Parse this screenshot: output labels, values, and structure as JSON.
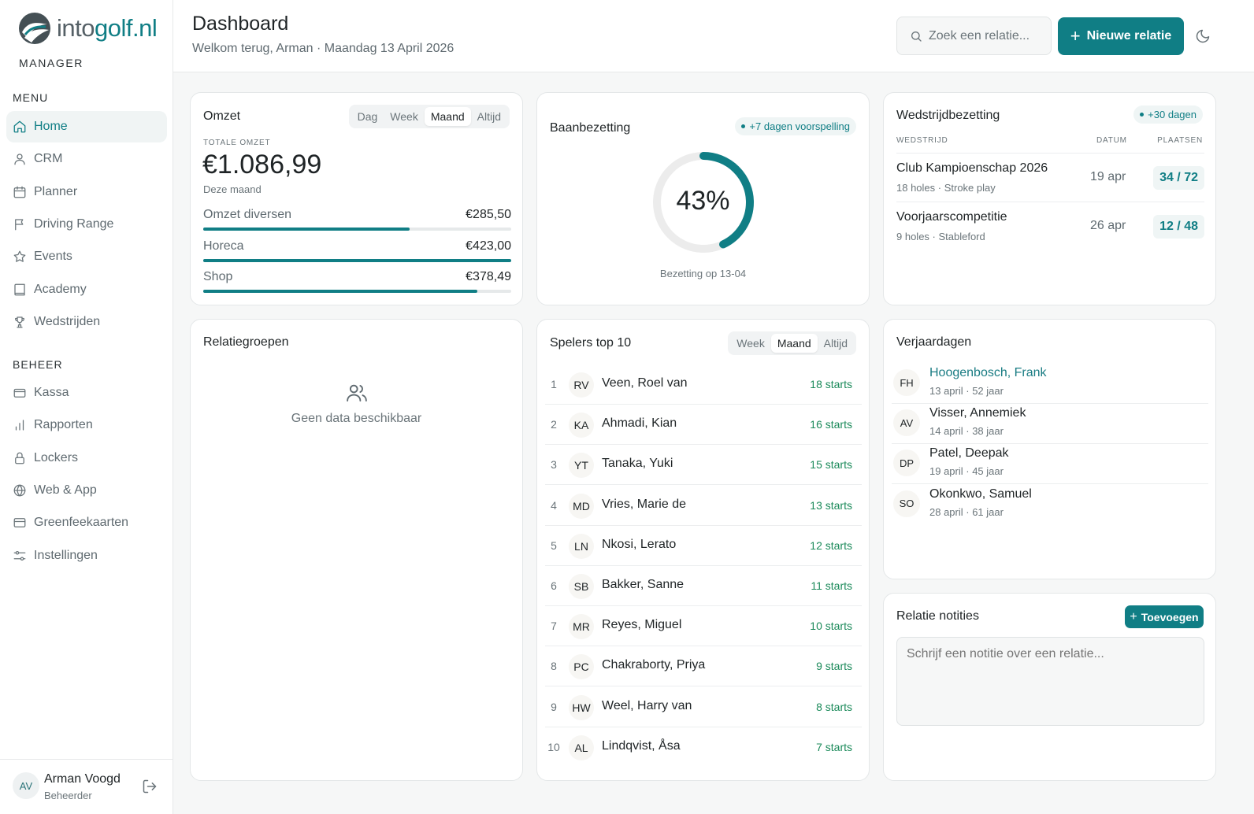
{
  "brand": {
    "logo_plain": "into",
    "logo_accent": "golf.nl",
    "subtitle": "MANAGER"
  },
  "sidebar": {
    "menu_title": "MENU",
    "menu": [
      {
        "label": "Home",
        "icon": "home-icon"
      },
      {
        "label": "CRM",
        "icon": "user-icon"
      },
      {
        "label": "Planner",
        "icon": "calendar-icon"
      },
      {
        "label": "Driving Range",
        "icon": "flag-icon"
      },
      {
        "label": "Events",
        "icon": "star-icon"
      },
      {
        "label": "Academy",
        "icon": "book-icon"
      },
      {
        "label": "Wedstrijden",
        "icon": "trophy-icon"
      }
    ],
    "beheer_title": "BEHEER",
    "beheer": [
      {
        "label": "Kassa",
        "icon": "wallet-icon"
      },
      {
        "label": "Rapporten",
        "icon": "bar-chart-icon"
      },
      {
        "label": "Lockers",
        "icon": "lock-icon"
      },
      {
        "label": "Web & App",
        "icon": "globe-icon"
      },
      {
        "label": "Greenfeekaarten",
        "icon": "card-icon"
      },
      {
        "label": "Instellingen",
        "icon": "sliders-icon"
      }
    ]
  },
  "user": {
    "initials": "AV",
    "name": "Arman Voogd",
    "role": "Beheerder"
  },
  "header": {
    "title": "Dashboard",
    "subtitle": "Welkom terug, Arman · Maandag 13 April 2026",
    "search_placeholder": "Zoek een relatie...",
    "new_button": "Nieuwe relatie"
  },
  "omzet": {
    "title": "Omzet",
    "tabs": [
      "Dag",
      "Week",
      "Maand",
      "Altijd"
    ],
    "active_tab": "Maand",
    "total_label": "TOTALE OMZET",
    "total": "€1.086,99",
    "period": "Deze maand",
    "rows": [
      {
        "label": "Omzet diversen",
        "value": "€285,50",
        "fraction": 0.67
      },
      {
        "label": "Horeca",
        "value": "€423,00",
        "fraction": 1.0
      },
      {
        "label": "Shop",
        "value": "€378,49",
        "fraction": 0.89
      }
    ]
  },
  "baan": {
    "title": "Baanbezetting",
    "badge": "+7 dagen voorspelling",
    "percent_text": "43%",
    "percent": 43,
    "caption": "Bezetting op 13-04"
  },
  "wedstrijd": {
    "title": "Wedstrijdbezetting",
    "badge": "+30 dagen",
    "headers": [
      "WEDSTRIJD",
      "DATUM",
      "PLAATSEN"
    ],
    "rows": [
      {
        "name": "Club Kampioenschap 2026",
        "sub": "18 holes · Stroke play",
        "date": "19 apr",
        "places": "34 / 72"
      },
      {
        "name": "Voorjaarscompetitie",
        "sub": "9 holes · Stableford",
        "date": "26 apr",
        "places": "12 / 48"
      }
    ]
  },
  "relatiegroepen": {
    "title": "Relatiegroepen",
    "empty": "Geen data beschikbaar"
  },
  "spelers": {
    "title": "Spelers top 10",
    "tabs": [
      "Week",
      "Maand",
      "Altijd"
    ],
    "active_tab": "Maand",
    "rows": [
      {
        "rank": "1",
        "initials": "RV",
        "name": "Veen, Roel van",
        "starts": "18 starts"
      },
      {
        "rank": "2",
        "initials": "KA",
        "name": "Ahmadi, Kian",
        "starts": "16 starts"
      },
      {
        "rank": "3",
        "initials": "YT",
        "name": "Tanaka, Yuki",
        "starts": "15 starts"
      },
      {
        "rank": "4",
        "initials": "MD",
        "name": "Vries, Marie de",
        "starts": "13 starts"
      },
      {
        "rank": "5",
        "initials": "LN",
        "name": "Nkosi, Lerato",
        "starts": "12 starts"
      },
      {
        "rank": "6",
        "initials": "SB",
        "name": "Bakker, Sanne",
        "starts": "11 starts"
      },
      {
        "rank": "7",
        "initials": "MR",
        "name": "Reyes, Miguel",
        "starts": "10 starts"
      },
      {
        "rank": "8",
        "initials": "PC",
        "name": "Chakraborty, Priya",
        "starts": "9 starts"
      },
      {
        "rank": "9",
        "initials": "HW",
        "name": "Weel, Harry van",
        "starts": "8 starts"
      },
      {
        "rank": "10",
        "initials": "AL",
        "name": "Lindqvist, Åsa",
        "starts": "7 starts"
      }
    ]
  },
  "verjaardagen": {
    "title": "Verjaardagen",
    "rows": [
      {
        "initials": "FH",
        "name": "Hoogenbosch, Frank",
        "meta": "13 april · 52 jaar",
        "today": true
      },
      {
        "initials": "AV",
        "name": "Visser, Annemiek",
        "meta": "14 april · 38 jaar",
        "today": false
      },
      {
        "initials": "DP",
        "name": "Patel, Deepak",
        "meta": "19 april · 45 jaar",
        "today": false
      },
      {
        "initials": "SO",
        "name": "Okonkwo, Samuel",
        "meta": "28 april · 61 jaar",
        "today": false
      }
    ]
  },
  "notities": {
    "title": "Relatie notities",
    "add_button": "Toevoegen",
    "placeholder": "Schrijf een notitie over een relatie..."
  },
  "colors": {
    "accent": "#107e85",
    "positive": "#1b8a5a"
  }
}
